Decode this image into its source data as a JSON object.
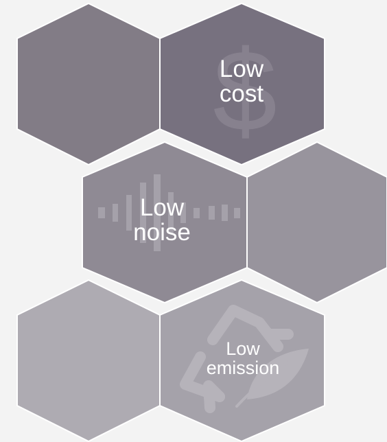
{
  "hexagons": [
    {
      "id": "hex-1",
      "fill": "#827c86"
    },
    {
      "id": "hex-2",
      "fill": "#77717f",
      "icon": "dollar-icon"
    },
    {
      "id": "hex-3",
      "fill": "#8f8a94",
      "icon": "sound-wave-icon"
    },
    {
      "id": "hex-4",
      "fill": "#98949d"
    },
    {
      "id": "hex-5",
      "fill": "#aeabb2"
    },
    {
      "id": "hex-6",
      "fill": "#a5a2aa",
      "icon": "recycle-leaf-icon"
    }
  ],
  "labels": {
    "low_cost": {
      "line1": "Low",
      "line2": "cost"
    },
    "low_noise": {
      "line1": "Low",
      "line2": "noise"
    },
    "low_emission": {
      "line1": "Low",
      "line2": "emission"
    }
  },
  "colors": {
    "background": "#f3f3f3",
    "text": "#ffffff",
    "outline": "#ffffff"
  }
}
